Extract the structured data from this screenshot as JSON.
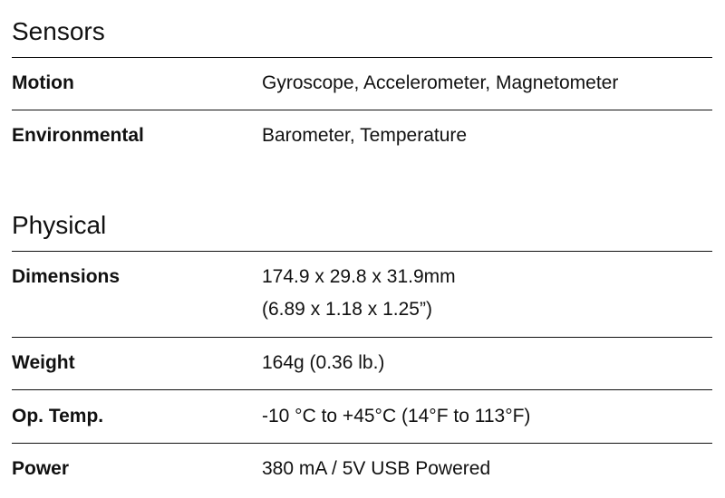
{
  "sensors": {
    "title": "Sensors",
    "rows": [
      {
        "label": "Motion",
        "value": "Gyroscope, Accelerometer, Magnetometer"
      },
      {
        "label": "Environmental",
        "value": "Barometer, Temperature"
      }
    ]
  },
  "physical": {
    "title": "Physical",
    "rows": [
      {
        "label": "Dimensions",
        "value_line1": "174.9 x 29.8 x 31.9mm",
        "value_line2": "(6.89 x 1.18 x 1.25”)"
      },
      {
        "label": "Weight",
        "value": "164g (0.36 lb.)"
      },
      {
        "label": "Op. Temp.",
        "value": "-10 °C to +45°C (14°F to 113°F)"
      },
      {
        "label": "Power",
        "value": "380 mA / 5V USB Powered"
      }
    ]
  }
}
